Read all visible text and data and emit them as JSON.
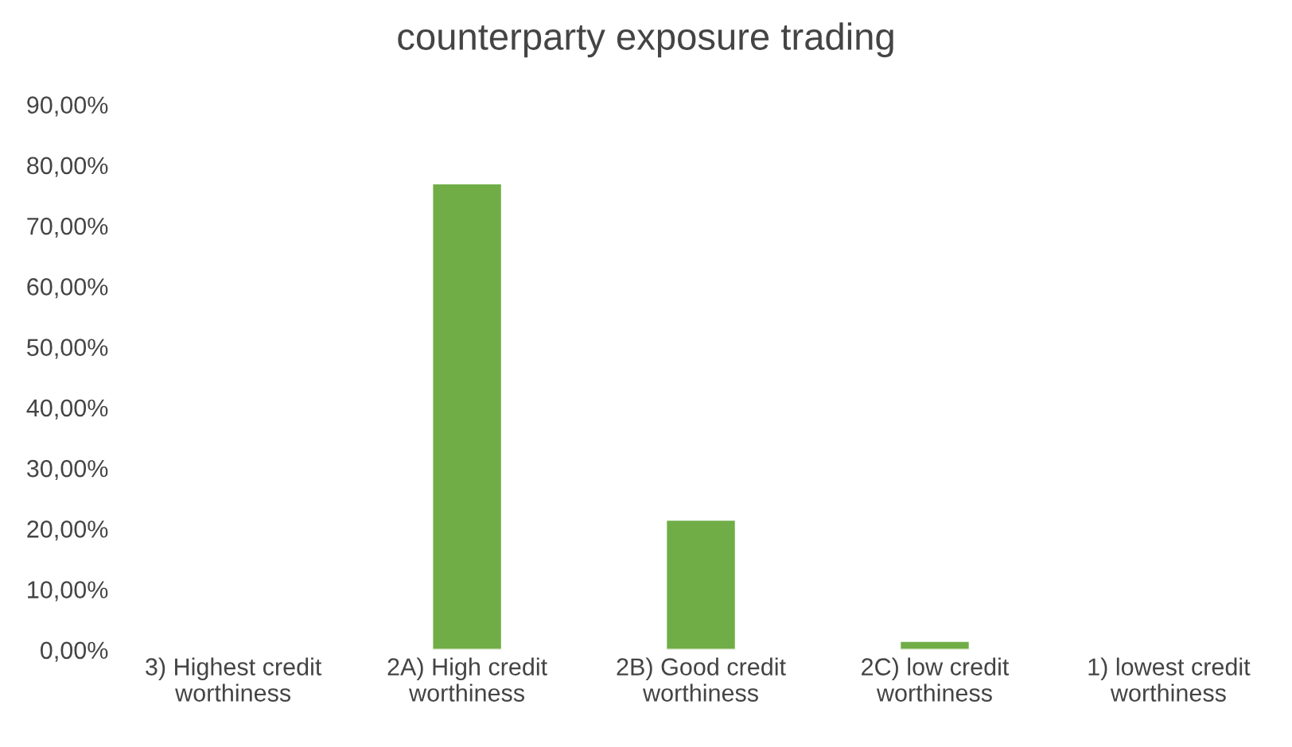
{
  "chart_data": {
    "type": "bar",
    "title": "counterparty exposure trading",
    "categories": [
      "3) Highest credit worthiness",
      "2A) High credit worthiness",
      "2B) Good credit worthiness",
      "2C) low credit worthiness",
      "1) lowest credit worthiness"
    ],
    "values": [
      null,
      77,
      21.5,
      1.5,
      null
    ],
    "color": "#70ad47",
    "ylim": [
      0,
      90
    ],
    "yticks": [
      {
        "value": 0,
        "label": "0,00%"
      },
      {
        "value": 10,
        "label": "10,00%"
      },
      {
        "value": 20,
        "label": "20,00%"
      },
      {
        "value": 30,
        "label": "30,00%"
      },
      {
        "value": 40,
        "label": "40,00%"
      },
      {
        "value": 50,
        "label": "50,00%"
      },
      {
        "value": 60,
        "label": "60,00%"
      },
      {
        "value": 70,
        "label": "70,00%"
      },
      {
        "value": 80,
        "label": "80,00%"
      },
      {
        "value": 90,
        "label": "90,00%"
      }
    ],
    "grid": false
  }
}
